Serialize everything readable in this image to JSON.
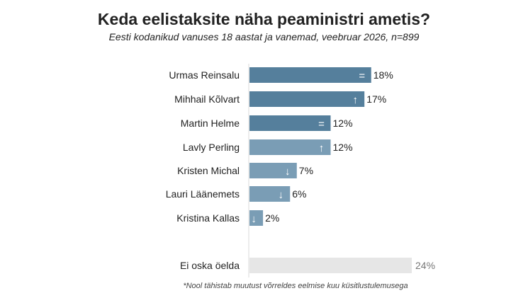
{
  "chart_data": {
    "type": "bar",
    "orientation": "horizontal",
    "title": "Keda eelistaksite näha peaministri ametis?",
    "subtitle": "Eesti kodanikud vanuses 18 aastat ja vanemad, veebruar 2026, n=899",
    "note": "*Nool tähistab muutust võrreldes eelmise kuu küsitlustulemusega",
    "unit": "%",
    "categories": [
      "Urmas Reinsalu",
      "Mihhail Kõlvart",
      "Martin Helme",
      "Lavly Perling",
      "Kristen Michal",
      "Lauri Läänemets",
      "Kristina Kallas",
      "Ei oska öelda"
    ],
    "values": [
      18,
      17,
      12,
      12,
      7,
      6,
      2,
      24
    ],
    "labels": [
      "18%",
      "17%",
      "12%",
      "12%",
      "7%",
      "6%",
      "2%",
      "24%"
    ],
    "change": [
      "=",
      "↑",
      "=",
      "↑",
      "↓",
      "↓",
      "↓",
      ""
    ],
    "colors": [
      "#557f9c",
      "#557f9c",
      "#557f9c",
      "#7a9db5",
      "#7a9db5",
      "#7a9db5",
      "#7a9db5",
      "#e6e6e6"
    ],
    "xlim": [
      0,
      24
    ]
  }
}
